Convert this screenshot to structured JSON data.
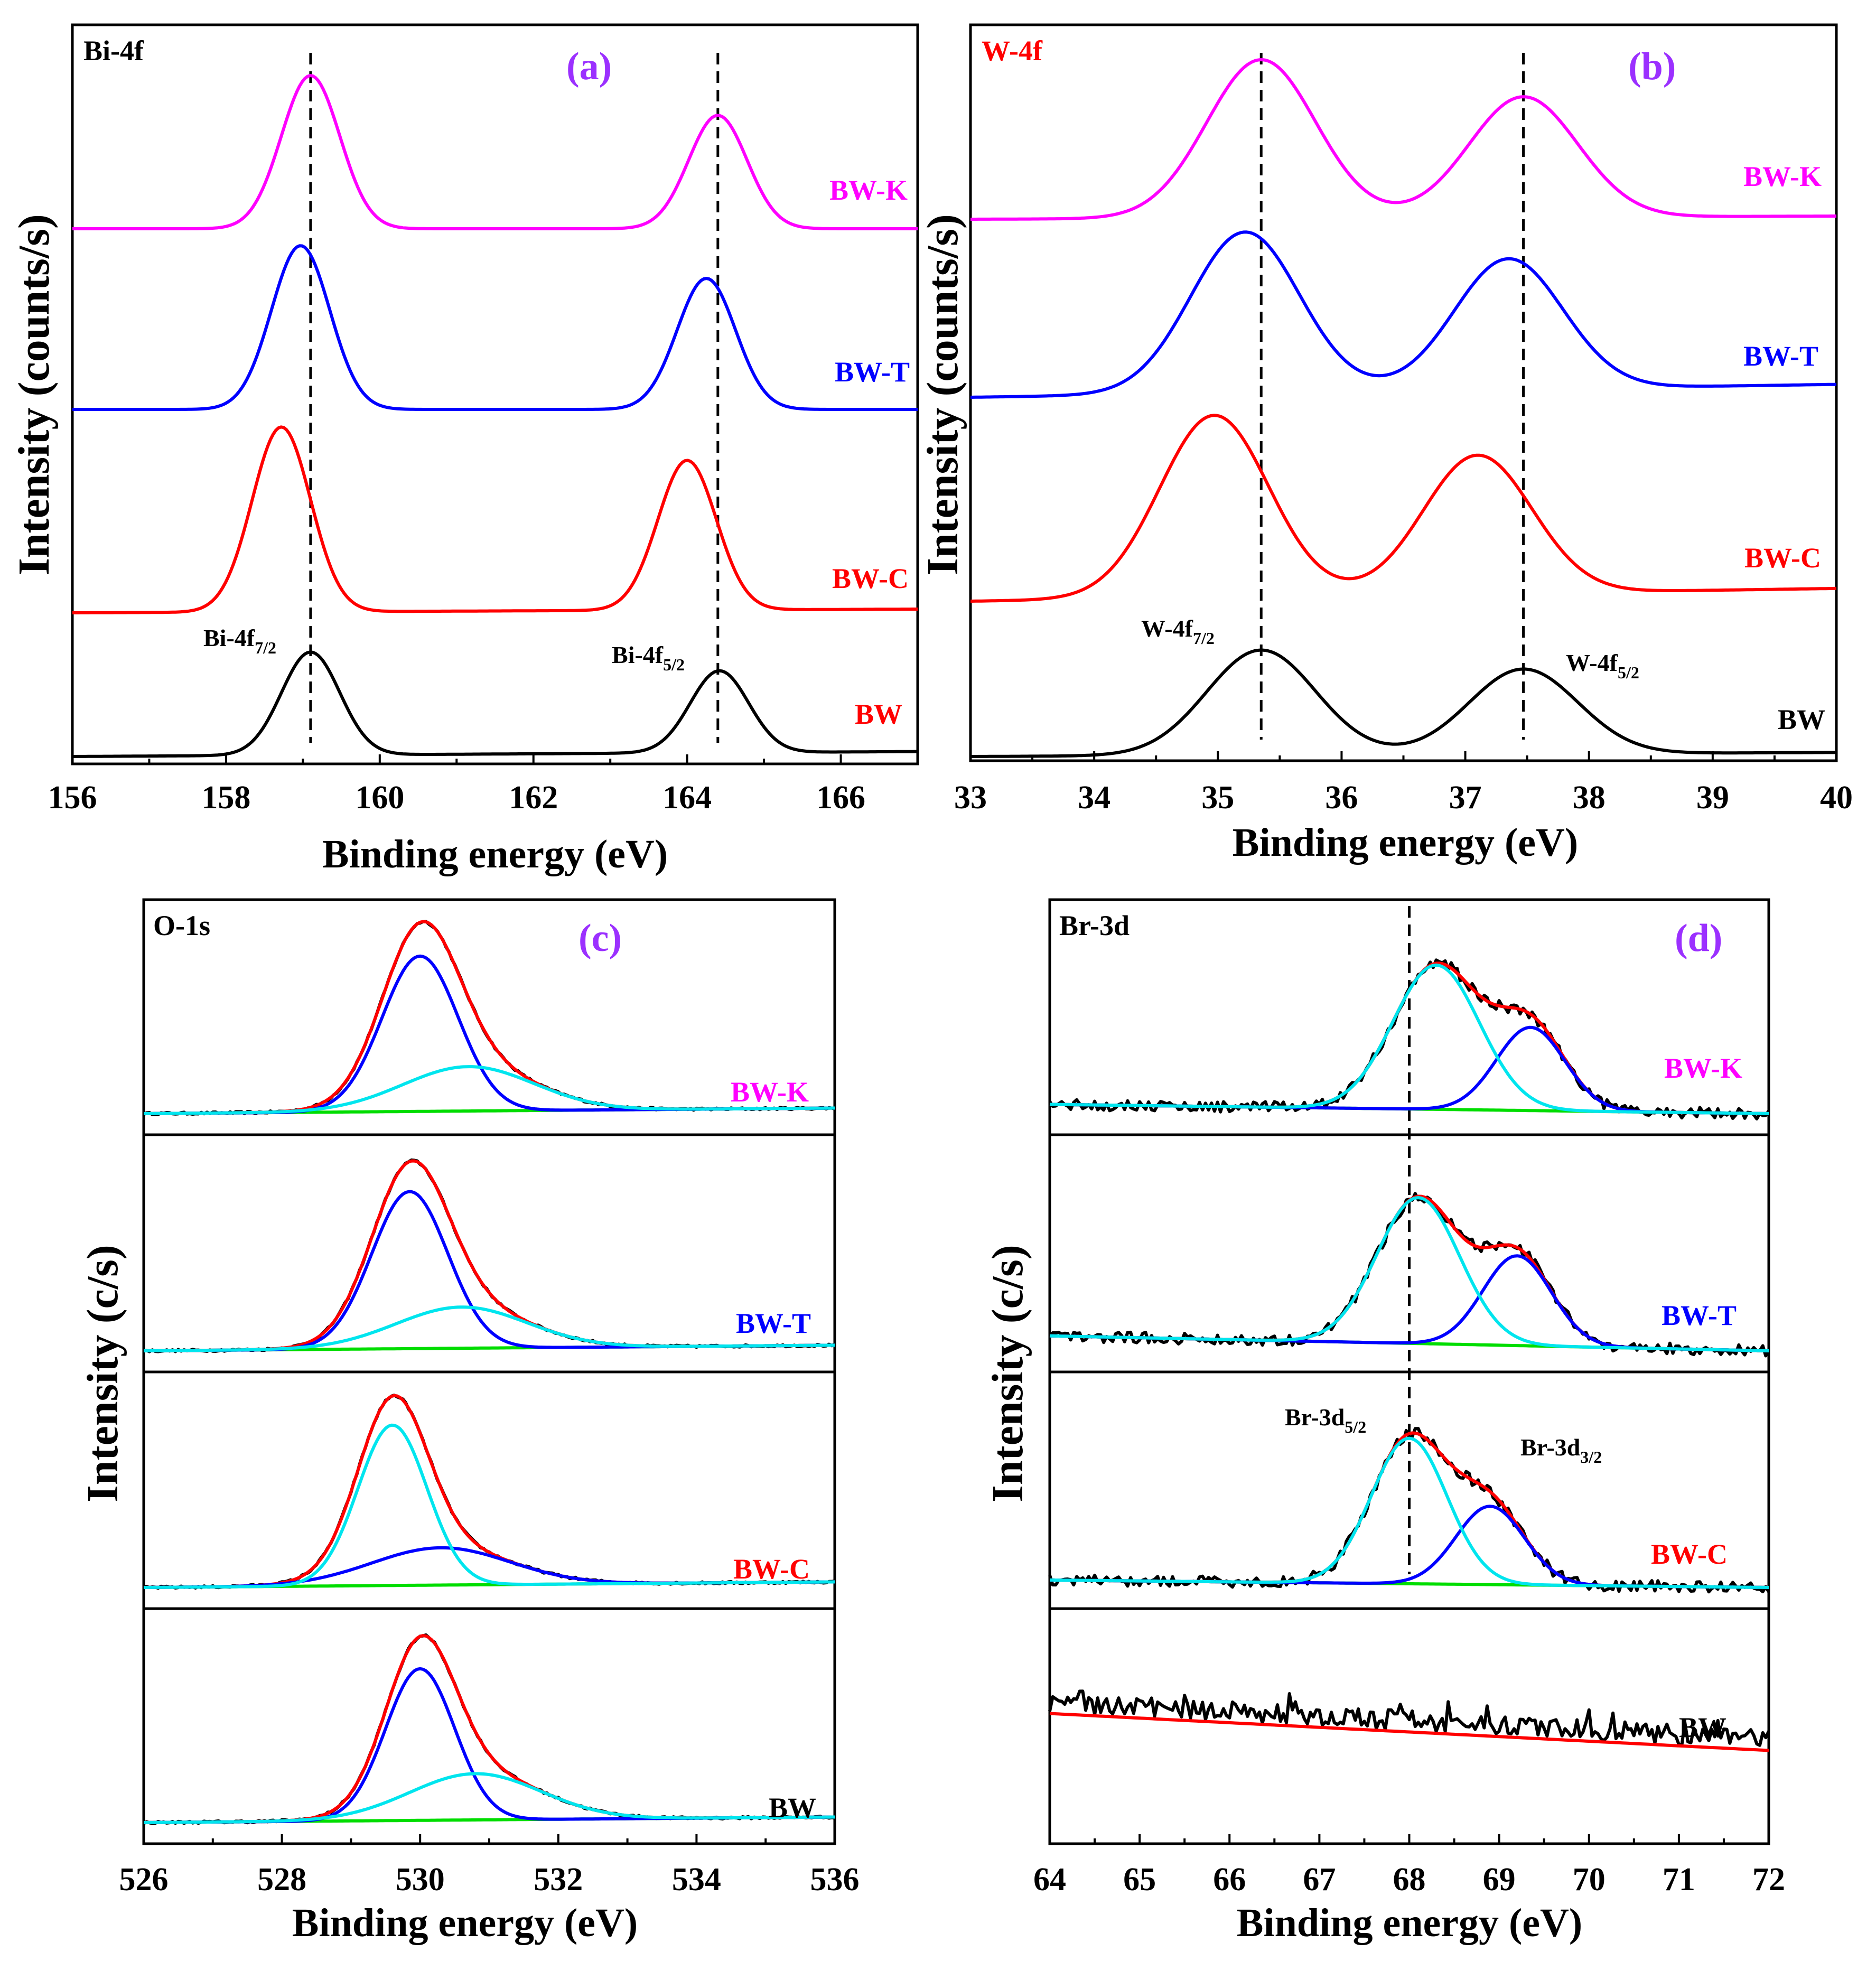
{
  "colors": {
    "BW": "#000000",
    "BW-C": "#ff0000",
    "BW-T": "#0000ff",
    "BW-K": "#ff00ff",
    "envelope": "#ff0000",
    "component_a": "#0000ff",
    "component_b": "#00e5ee",
    "background": "#00dd00",
    "raw": "#000000",
    "panel_letter": "#9b30ff"
  },
  "chart_data": [
    {
      "id": "a",
      "type": "line",
      "panel_letter": "(a)",
      "core_level": "Bi-4f",
      "core_level_color": "#000000",
      "xlabel": "Binding energy (eV)",
      "ylabel": "Intensity (counts/s)",
      "xlim": [
        156,
        167
      ],
      "xticks": [
        156,
        158,
        160,
        162,
        164,
        166
      ],
      "dashed_lines": [
        159.1,
        164.4
      ],
      "peak_annotations": [
        {
          "main": "Bi-4f",
          "sub": "7/2",
          "x": 158.1
        },
        {
          "main": "Bi-4f",
          "sub": "5/2",
          "x": 163.4
        }
      ],
      "series": [
        {
          "name": "BW-K",
          "color": "#ff00ff",
          "label_color": "#ff00ff",
          "peaks": [
            {
              "center": 159.1,
              "height": 1.0,
              "width": 0.38
            },
            {
              "center": 164.4,
              "height": 0.74,
              "width": 0.38
            }
          ],
          "baseline": [
            0.0,
            0.0
          ]
        },
        {
          "name": "BW-T",
          "color": "#0000ff",
          "label_color": "#0000ff",
          "peaks": [
            {
              "center": 158.97,
              "height": 1.0,
              "width": 0.38
            },
            {
              "center": 164.25,
              "height": 0.8,
              "width": 0.38
            }
          ],
          "baseline": [
            0.0,
            0.0
          ]
        },
        {
          "name": "BW-C",
          "color": "#ff0000",
          "label_color": "#ff0000",
          "peaks": [
            {
              "center": 158.72,
              "height": 1.0,
              "width": 0.38
            },
            {
              "center": 164.0,
              "height": 0.81,
              "width": 0.38
            }
          ],
          "baseline": [
            0.0,
            0.02
          ]
        },
        {
          "name": "BW",
          "color": "#000000",
          "label_color": "#ff0000",
          "peaks": [
            {
              "center": 159.1,
              "height": 0.83,
              "width": 0.38
            },
            {
              "center": 164.42,
              "height": 0.66,
              "width": 0.38
            }
          ],
          "baseline": [
            0.0,
            0.04
          ]
        }
      ]
    },
    {
      "id": "b",
      "type": "line",
      "panel_letter": "(b)",
      "core_level": "W-4f",
      "core_level_color": "#ff0000",
      "xlabel": "Binding energy (eV)",
      "ylabel": "Intensity (counts/s)",
      "xlim": [
        33,
        40
      ],
      "xticks": [
        33,
        34,
        35,
        36,
        37,
        38,
        39,
        40
      ],
      "dashed_lines": [
        35.35,
        37.47
      ],
      "peak_annotations": [
        {
          "main": "W-4f",
          "sub": "7/2",
          "x": 34.4
        },
        {
          "main": "W-4f",
          "sub": "5/2",
          "x": 37.8
        }
      ],
      "series": [
        {
          "name": "BW-K",
          "color": "#ff00ff",
          "label_color": "#ff00ff",
          "peaks": [
            {
              "center": 35.35,
              "height": 1.0,
              "width": 0.44
            },
            {
              "center": 37.47,
              "height": 0.76,
              "width": 0.44
            }
          ],
          "baseline": [
            0.0,
            0.02
          ]
        },
        {
          "name": "BW-T",
          "color": "#0000ff",
          "label_color": "#0000ff",
          "peaks": [
            {
              "center": 35.22,
              "height": 1.0,
              "width": 0.44
            },
            {
              "center": 37.35,
              "height": 0.81,
              "width": 0.44
            }
          ],
          "baseline": [
            0.0,
            0.08
          ]
        },
        {
          "name": "BW-C",
          "color": "#ff0000",
          "label_color": "#ff0000",
          "peaks": [
            {
              "center": 34.97,
              "height": 1.0,
              "width": 0.44
            },
            {
              "center": 37.1,
              "height": 0.76,
              "width": 0.44
            }
          ],
          "baseline": [
            0.0,
            0.07
          ]
        },
        {
          "name": "BW",
          "color": "#000000",
          "label_color": "#000000",
          "peaks": [
            {
              "center": 35.35,
              "height": 0.78,
              "width": 0.44
            },
            {
              "center": 37.47,
              "height": 0.63,
              "width": 0.44
            }
          ],
          "baseline": [
            0.0,
            0.03
          ]
        }
      ]
    },
    {
      "id": "c",
      "type": "line",
      "panel_letter": "(c)",
      "core_level": "O-1s",
      "core_level_color": "#000000",
      "xlabel": "Binding energy (eV)",
      "ylabel": "Intensity (c/s)",
      "xlim": [
        526,
        536
      ],
      "xticks": [
        526,
        528,
        530,
        532,
        534,
        536
      ],
      "components": [
        "raw spectrum (black)",
        "fitted envelope (red)",
        "component fits (blue, cyan)",
        "background (green)"
      ],
      "series": [
        {
          "name": "BW-K",
          "label_color": "#ff00ff",
          "blue": {
            "center": 530.0,
            "height": 0.84,
            "width": 0.55
          },
          "cyan": {
            "center": 530.7,
            "height": 0.24,
            "width": 0.95
          },
          "background": [
            0.0,
            0.03
          ]
        },
        {
          "name": "BW-T",
          "label_color": "#0000ff",
          "blue": {
            "center": 529.85,
            "height": 0.84,
            "width": 0.55
          },
          "cyan": {
            "center": 530.6,
            "height": 0.22,
            "width": 0.95
          },
          "background": [
            0.0,
            0.03
          ]
        },
        {
          "name": "BW-C",
          "label_color": "#ff0000",
          "blue": {
            "center": 530.3,
            "height": 0.2,
            "width": 1.0
          },
          "cyan": {
            "center": 529.6,
            "height": 0.86,
            "width": 0.5
          },
          "background": [
            0.0,
            0.03
          ]
        },
        {
          "name": "BW",
          "label_color": "#000000",
          "blue": {
            "center": 530.0,
            "height": 0.82,
            "width": 0.5
          },
          "cyan": {
            "center": 530.8,
            "height": 0.25,
            "width": 0.95
          },
          "background": [
            0.0,
            0.03
          ]
        }
      ]
    },
    {
      "id": "d",
      "type": "line",
      "panel_letter": "(d)",
      "core_level": "Br-3d",
      "core_level_color": "#000000",
      "xlabel": "Binding energy (eV)",
      "ylabel": "Intensity (c/s)",
      "xlim": [
        64,
        72
      ],
      "xticks": [
        64,
        65,
        66,
        67,
        68,
        69,
        70,
        71,
        72
      ],
      "dashed_line": 68.0,
      "peak_annotations": [
        {
          "main": "Br-3d",
          "sub": "5/2",
          "x": 66.6
        },
        {
          "main": "Br-3d",
          "sub": "3/2",
          "x": 69.2
        }
      ],
      "series": [
        {
          "name": "BW-K",
          "label_color": "#ff00ff",
          "cyan": {
            "center": 68.3,
            "height": 0.78,
            "width": 0.48
          },
          "blue": {
            "center": 69.35,
            "height": 0.45,
            "width": 0.38
          },
          "background": [
            0.05,
            0.0
          ]
        },
        {
          "name": "BW-T",
          "label_color": "#0000ff",
          "cyan": {
            "center": 68.1,
            "height": 0.78,
            "width": 0.46
          },
          "blue": {
            "center": 69.2,
            "height": 0.48,
            "width": 0.38
          },
          "background": [
            0.08,
            0.0
          ]
        },
        {
          "name": "BW-C",
          "label_color": "#ff0000",
          "cyan": {
            "center": 68.0,
            "height": 0.78,
            "width": 0.42
          },
          "blue": {
            "center": 68.9,
            "height": 0.42,
            "width": 0.38
          },
          "background": [
            0.04,
            0.0
          ]
        },
        {
          "name": "BW",
          "label_color": "#000000",
          "noise_only": true,
          "background": [
            0.65,
            0.45
          ]
        }
      ]
    }
  ]
}
